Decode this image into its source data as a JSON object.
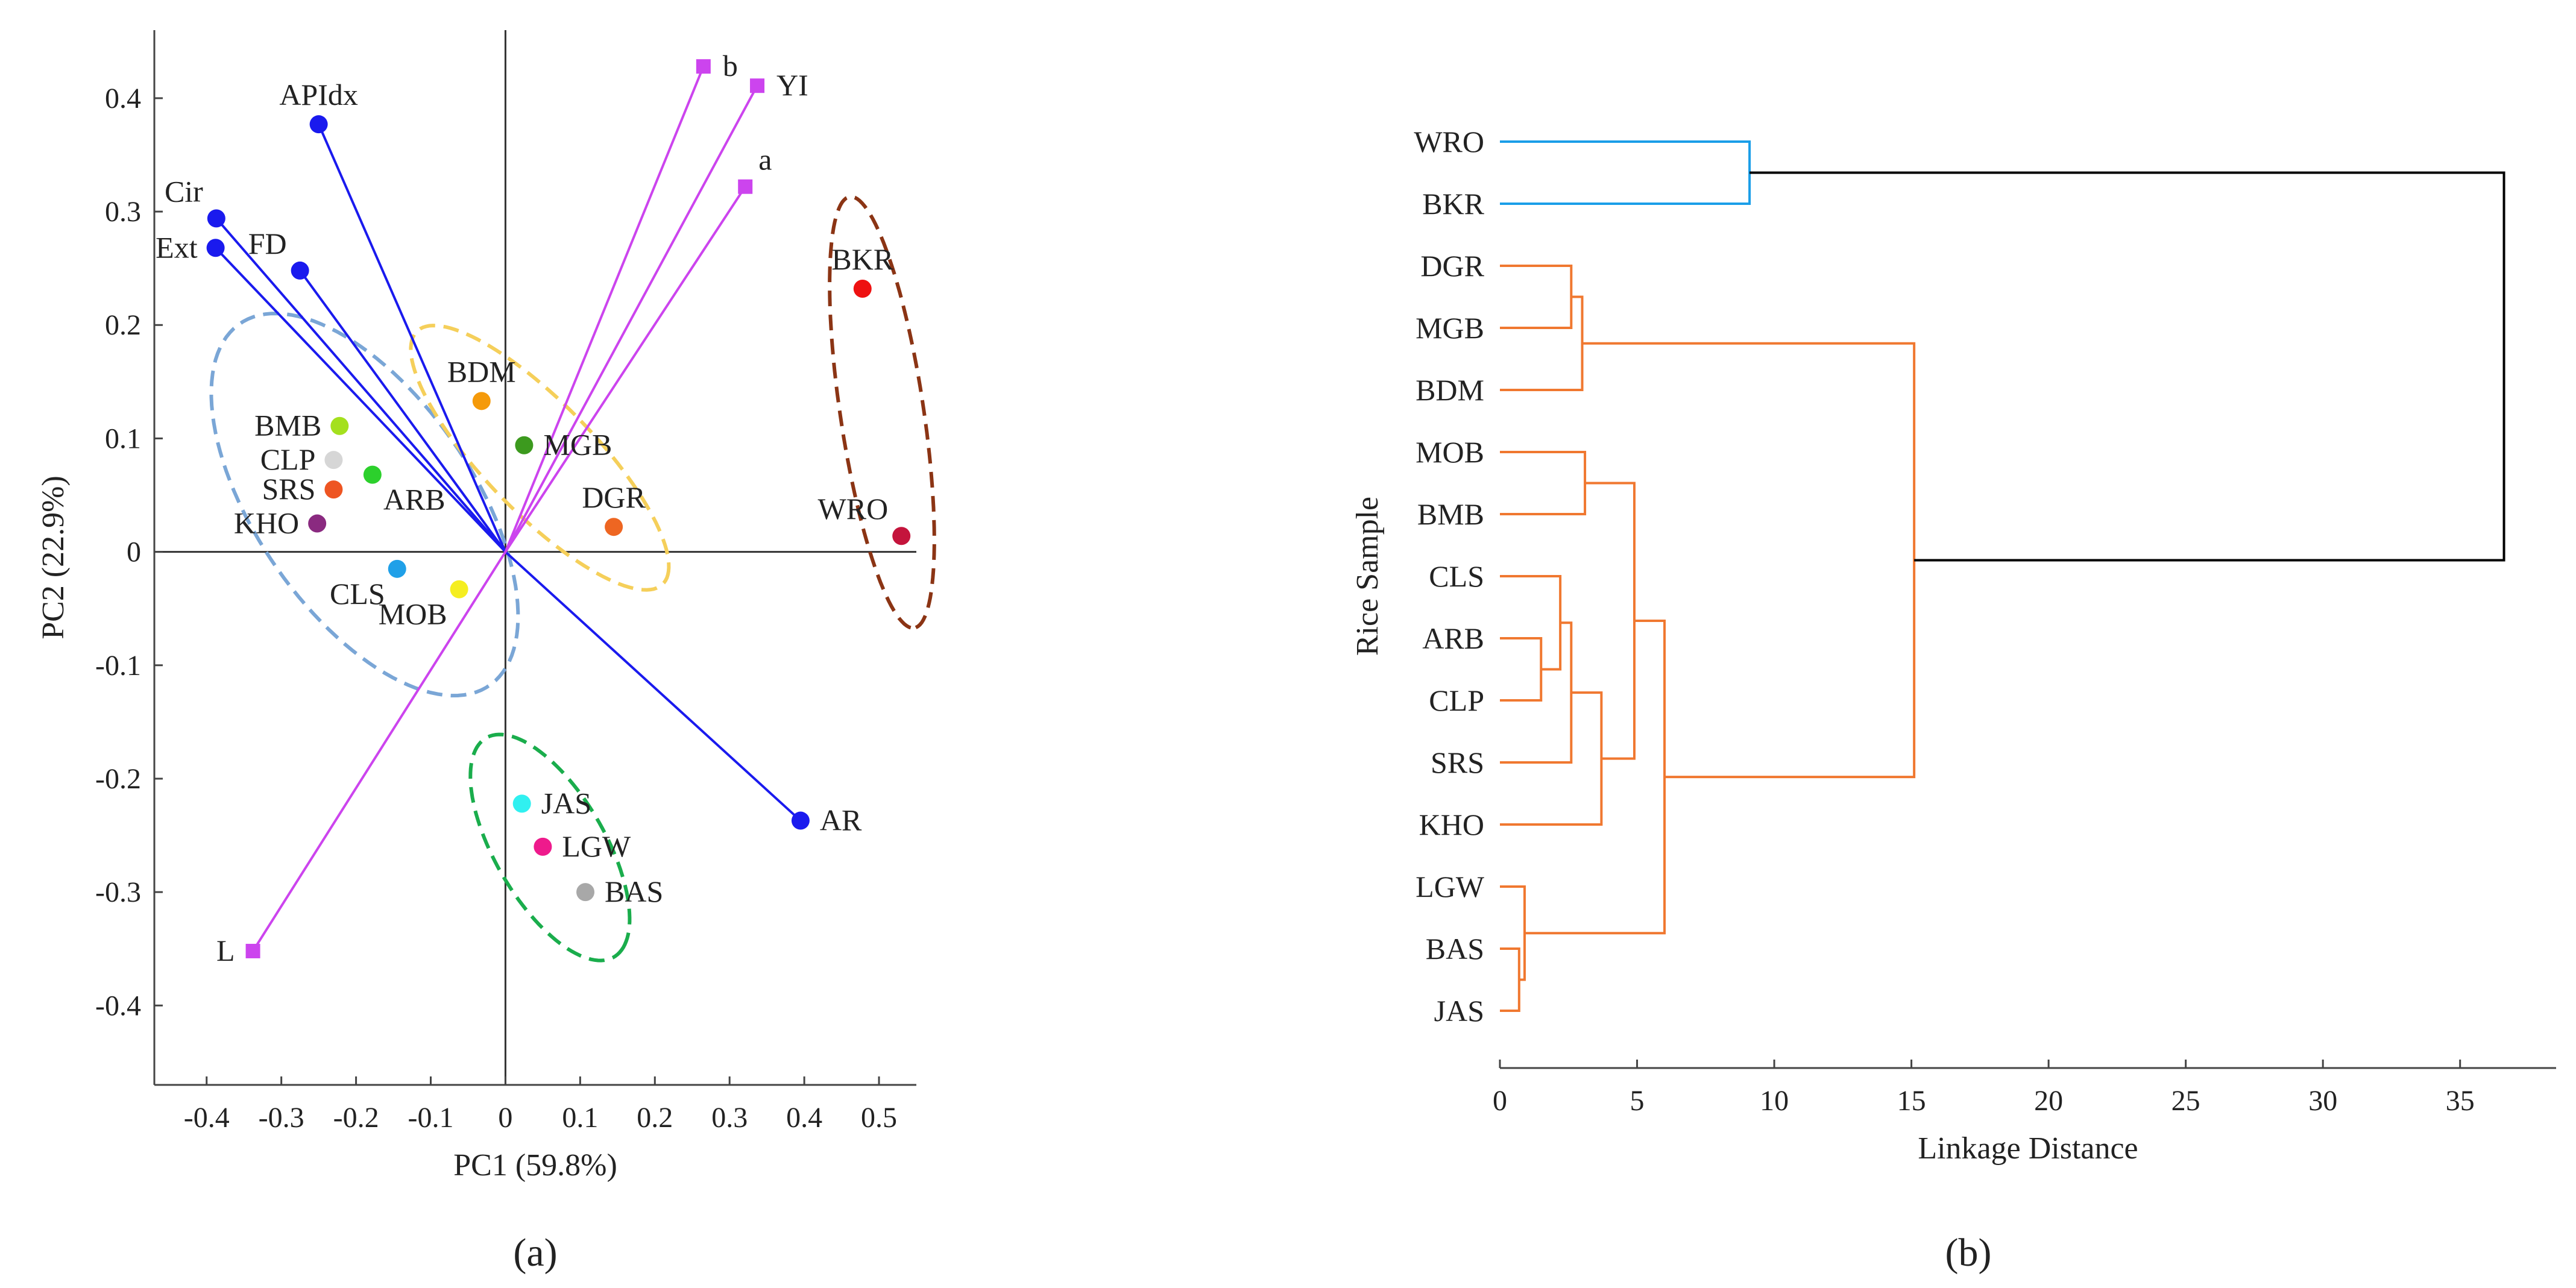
{
  "chart_data": [
    {
      "type": "scatter",
      "subtype": "pca-biplot",
      "panel_label": "(a)",
      "xlabel": "PC1 (59.8%)",
      "ylabel": "PC2 (22.9%)",
      "xlim": [
        -0.47,
        0.55
      ],
      "ylim": [
        -0.47,
        0.46
      ],
      "x_ticks": [
        -0.4,
        -0.3,
        -0.2,
        -0.1,
        0,
        0.1,
        0.2,
        0.3,
        0.4,
        0.5
      ],
      "x_tick_labels": [
        "-0.4",
        "-0.3",
        "-0.2",
        "-0.1",
        "0",
        "0.1",
        "0.2",
        "0.3",
        "0.4",
        "0.5"
      ],
      "y_ticks": [
        -0.4,
        -0.3,
        -0.2,
        -0.1,
        0,
        0.1,
        0.2,
        0.3,
        0.4
      ],
      "y_tick_labels": [
        "-0.4",
        "-0.3",
        "-0.2",
        "-0.1",
        "0",
        "0.1",
        "0.2",
        "0.3",
        "0.4"
      ],
      "loadings": [
        {
          "label": "APIdx",
          "x": -0.25,
          "y": 0.377,
          "color": "#1a1aee",
          "marker": "circle",
          "label_pos": "top"
        },
        {
          "label": "Cir",
          "x": -0.387,
          "y": 0.294,
          "color": "#1a1aee",
          "marker": "circle",
          "label_pos": "top-left"
        },
        {
          "label": "Ext",
          "x": -0.388,
          "y": 0.268,
          "color": "#1a1aee",
          "marker": "circle",
          "label_pos": "left"
        },
        {
          "label": "FD",
          "x": -0.275,
          "y": 0.248,
          "color": "#1a1aee",
          "marker": "circle",
          "label_pos": "top-left"
        },
        {
          "label": "AR",
          "x": 0.395,
          "y": -0.237,
          "color": "#1a1aee",
          "marker": "circle",
          "label_pos": "right"
        },
        {
          "label": "b",
          "x": 0.265,
          "y": 0.428,
          "color": "#cc44ee",
          "marker": "square",
          "label_pos": "right"
        },
        {
          "label": "YI",
          "x": 0.337,
          "y": 0.411,
          "color": "#cc44ee",
          "marker": "square",
          "label_pos": "right"
        },
        {
          "label": "a",
          "x": 0.321,
          "y": 0.322,
          "color": "#cc44ee",
          "marker": "square",
          "label_pos": "top-right"
        },
        {
          "label": "L",
          "x": -0.338,
          "y": -0.352,
          "color": "#cc44ee",
          "marker": "square",
          "label_pos": "left"
        }
      ],
      "scores": [
        {
          "label": "BKR",
          "x": 0.478,
          "y": 0.232,
          "color": "#ee1111",
          "label_pos": "top"
        },
        {
          "label": "WRO",
          "x": 0.53,
          "y": 0.014,
          "color": "#c4143c",
          "label_pos": "top-left"
        },
        {
          "label": "BDM",
          "x": -0.032,
          "y": 0.133,
          "color": "#f59a0a",
          "label_pos": "top"
        },
        {
          "label": "MGB",
          "x": 0.025,
          "y": 0.094,
          "color": "#3c9a1e",
          "label_pos": "right"
        },
        {
          "label": "DGR",
          "x": 0.145,
          "y": 0.022,
          "color": "#ee6622",
          "label_pos": "top"
        },
        {
          "label": "BMB",
          "x": -0.222,
          "y": 0.111,
          "color": "#a4e01e",
          "label_pos": "left"
        },
        {
          "label": "CLP",
          "x": -0.23,
          "y": 0.081,
          "color": "#d6d6d6",
          "label_pos": "left"
        },
        {
          "label": "SRS",
          "x": -0.23,
          "y": 0.055,
          "color": "#ee5522",
          "label_pos": "left"
        },
        {
          "label": "ARB",
          "x": -0.178,
          "y": 0.068,
          "color": "#2cd02c",
          "label_pos": "bottom-right"
        },
        {
          "label": "KHO",
          "x": -0.252,
          "y": 0.025,
          "color": "#8a2a80",
          "label_pos": "left"
        },
        {
          "label": "CLS",
          "x": -0.145,
          "y": -0.015,
          "color": "#20a0e8",
          "label_pos": "bottom-left"
        },
        {
          "label": "MOB",
          "x": -0.062,
          "y": -0.033,
          "color": "#f5ee20",
          "label_pos": "bottom-left"
        },
        {
          "label": "JAS",
          "x": 0.022,
          "y": -0.222,
          "color": "#30f0f0",
          "label_pos": "right"
        },
        {
          "label": "LGW",
          "x": 0.05,
          "y": -0.26,
          "color": "#ee1a8c",
          "label_pos": "right"
        },
        {
          "label": "BAS",
          "x": 0.107,
          "y": -0.3,
          "color": "#a8a8a8",
          "label_pos": "right"
        }
      ],
      "clusters": [
        {
          "color": "#7aa6d6",
          "members": [
            "BMB",
            "CLP",
            "SRS",
            "ARB",
            "KHO",
            "CLS",
            "MOB"
          ]
        },
        {
          "color": "#f5cf5a",
          "members": [
            "BDM",
            "MGB",
            "DGR"
          ]
        },
        {
          "color": "#8b3414",
          "members": [
            "BKR",
            "WRO"
          ]
        },
        {
          "color": "#1aad4c",
          "members": [
            "JAS",
            "LGW",
            "BAS"
          ]
        }
      ]
    },
    {
      "type": "dendrogram",
      "panel_label": "(b)",
      "xlabel": "Linkage Distance",
      "ylabel": "Rice Sample",
      "xlim": [
        0,
        38.5
      ],
      "x_ticks": [
        0,
        5,
        10,
        15,
        20,
        25,
        30,
        35
      ],
      "x_tick_labels": [
        "0",
        "5",
        "10",
        "15",
        "20",
        "25",
        "30",
        "35"
      ],
      "leaves": [
        "WRO",
        "BKR",
        "DGR",
        "MGB",
        "BDM",
        "MOB",
        "BMB",
        "CLS",
        "ARB",
        "CLP",
        "SRS",
        "KHO",
        "LGW",
        "BAS",
        "JAS"
      ],
      "colors": {
        "cluster1": "#1a9ee8",
        "cluster2": "#f07830",
        "root": "#000000"
      },
      "merges": [
        {
          "a": "WRO",
          "b": "BKR",
          "height": 9.1,
          "color": "cluster1"
        },
        {
          "a": "DGR",
          "b": "MGB",
          "height": 2.6,
          "color": "cluster2"
        },
        {
          "a": "DGR+MGB",
          "b": "BDM",
          "height": 3.0,
          "color": "cluster2"
        },
        {
          "a": "MOB",
          "b": "BMB",
          "height": 3.1,
          "color": "cluster2"
        },
        {
          "a": "ARB",
          "b": "CLP",
          "height": 1.5,
          "color": "cluster2"
        },
        {
          "a": "CLS",
          "b": "ARB+CLP",
          "height": 2.2,
          "color": "cluster2"
        },
        {
          "a": "CLS+ARB+CLP",
          "b": "SRS",
          "height": 2.6,
          "color": "cluster2"
        },
        {
          "a": "CLS+ARB+CLP+SRS",
          "b": "KHO",
          "height": 3.7,
          "color": "cluster2"
        },
        {
          "a": "MOB+BMB",
          "b": "CLS+ARB+CLP+SRS+KHO",
          "height": 4.9,
          "color": "cluster2"
        },
        {
          "a": "BAS",
          "b": "JAS",
          "height": 0.7,
          "color": "cluster2"
        },
        {
          "a": "LGW",
          "b": "BAS+JAS",
          "height": 0.9,
          "color": "cluster2"
        },
        {
          "a": "MOB..KHO",
          "b": "LGW+BAS+JAS",
          "height": 6.0,
          "color": "cluster2"
        },
        {
          "a": "DGR+MGB+BDM",
          "b": "MOB..JAS",
          "height": 15.1,
          "color": "cluster2"
        },
        {
          "a": "WRO+BKR",
          "b": "DGR..JAS",
          "height": 36.6,
          "color": "root"
        }
      ]
    }
  ]
}
